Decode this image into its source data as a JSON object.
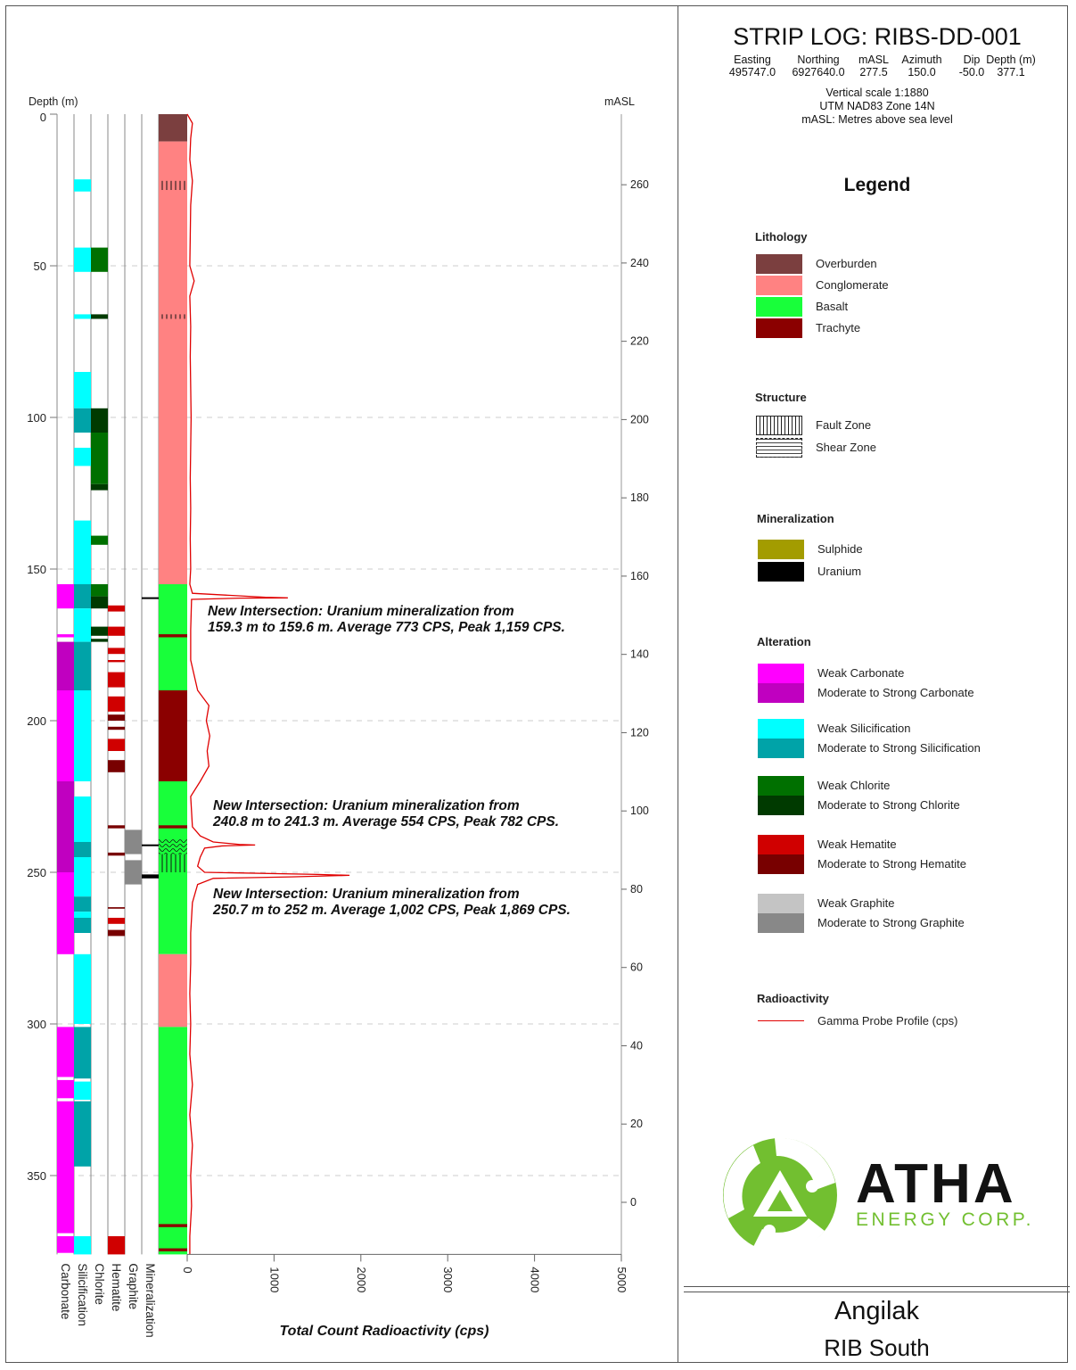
{
  "header": {
    "title": "STRIP LOG: RIBS-DD-001",
    "collar_labels": [
      "Easting",
      "Northing",
      "mASL",
      "Azimuth",
      "Dip",
      "Depth (m)"
    ],
    "collar_values": [
      "495747.0",
      "6927640.0",
      "277.5",
      "150.0",
      "-50.0",
      "377.1"
    ],
    "notes": [
      "Vertical scale 1:1880",
      "UTM NAD83 Zone 14N",
      "mASL: Metres above sea level"
    ]
  },
  "legend": {
    "title": "Legend",
    "sections": [
      {
        "heading": "Lithology",
        "items": [
          {
            "label": "Overburden",
            "color": "#7b3f3f"
          },
          {
            "label": "Conglomerate",
            "color": "#ff8282"
          },
          {
            "label": "Basalt",
            "color": "#18ff3a"
          },
          {
            "label": "Trachyte",
            "color": "#8b0000"
          }
        ]
      },
      {
        "heading": "Structure",
        "items": [
          {
            "label": "Fault Zone",
            "pattern": "fault"
          },
          {
            "label": "Shear Zone",
            "pattern": "shear"
          }
        ]
      },
      {
        "heading": "Mineralization",
        "items": [
          {
            "label": "Sulphide",
            "color": "#a39c00"
          },
          {
            "label": "Uranium",
            "color": "#000000"
          }
        ]
      },
      {
        "heading": "Alteration",
        "items": [
          {
            "label": "Weak Carbonate",
            "color": "#ff00ff"
          },
          {
            "label": "Moderate to Strong Carbonate",
            "color": "#c000c0"
          },
          {
            "label": "Weak Silicification",
            "color": "#00ffff"
          },
          {
            "label": "Moderate to Strong Silicification",
            "color": "#00a3a8"
          },
          {
            "label": "Weak Chlorite",
            "color": "#007000"
          },
          {
            "label": "Moderate to Strong Chlorite",
            "color": "#003a00"
          },
          {
            "label": "Weak Hematite",
            "color": "#d00000"
          },
          {
            "label": "Moderate to Strong Hematite",
            "color": "#780000"
          },
          {
            "label": "Weak Graphite",
            "color": "#c4c4c4"
          },
          {
            "label": "Moderate to Strong Graphite",
            "color": "#888888"
          }
        ]
      },
      {
        "heading": "Radioactivity",
        "items": [
          {
            "label": "Gamma Probe Profile (cps)",
            "line": "#e00000"
          }
        ]
      }
    ]
  },
  "logo": {
    "name": "ATHA",
    "tagline": "ENERGY CORP.",
    "green": "#72bf30"
  },
  "footer": {
    "project": "Angilak",
    "area": "RIB South"
  },
  "chart_data": {
    "type": "strip-log",
    "ylabel_left": "Depth (m)",
    "ylabel_right": "mASL",
    "xlabel": "Total Count Radioactivity (cps)",
    "depth_range": [
      0,
      376
    ],
    "depth_ticks": [
      0,
      50,
      100,
      150,
      200,
      250,
      300,
      350
    ],
    "masl_ticks": [
      0,
      20,
      40,
      60,
      80,
      100,
      120,
      140,
      160,
      180,
      200,
      220,
      240,
      260
    ],
    "cps_range": [
      0,
      5000
    ],
    "cps_ticks": [
      0,
      1000,
      2000,
      3000,
      4000,
      5000
    ],
    "grid": true,
    "column_labels": [
      "Carbonate",
      "Silicification",
      "Chlorite",
      "Hematite",
      "Graphite",
      "Mineralization"
    ],
    "lithology": [
      {
        "from": 0,
        "to": 9,
        "unit": "Overburden"
      },
      {
        "from": 9,
        "to": 155,
        "unit": "Conglomerate"
      },
      {
        "from": 155,
        "to": 190,
        "unit": "Basalt"
      },
      {
        "from": 171.5,
        "to": 172.5,
        "unit": "Trachyte"
      },
      {
        "from": 190,
        "to": 220,
        "unit": "Trachyte"
      },
      {
        "from": 220,
        "to": 277,
        "unit": "Basalt"
      },
      {
        "from": 234.5,
        "to": 235.5,
        "unit": "Trachyte"
      },
      {
        "from": 277,
        "to": 301,
        "unit": "Conglomerate"
      },
      {
        "from": 301,
        "to": 376,
        "unit": "Basalt"
      },
      {
        "from": 366,
        "to": 367,
        "unit": "Trachyte"
      },
      {
        "from": 374,
        "to": 375,
        "unit": "Trachyte"
      }
    ],
    "structure": [
      {
        "from": 22,
        "to": 25,
        "type": "fault"
      },
      {
        "from": 66,
        "to": 67.5,
        "type": "fault"
      },
      {
        "from": 239,
        "to": 244,
        "type": "shear"
      },
      {
        "from": 244,
        "to": 250,
        "type": "fault"
      }
    ],
    "alteration": {
      "Carbonate": [
        [
          155,
          163,
          "weak"
        ],
        [
          171.5,
          172.5,
          "weak"
        ],
        [
          174,
          190,
          "strong"
        ],
        [
          190,
          220,
          "weak"
        ],
        [
          220,
          250,
          "strong"
        ],
        [
          250,
          277,
          "weak"
        ],
        [
          301,
          317.5,
          "weak"
        ],
        [
          318.5,
          324.5,
          "weak"
        ],
        [
          325.5,
          369,
          "weak"
        ],
        [
          370,
          375.5,
          "weak"
        ]
      ],
      "Silicification": [
        [
          21.5,
          25.5,
          "weak"
        ],
        [
          44,
          52,
          "weak"
        ],
        [
          66,
          67.5,
          "weak"
        ],
        [
          85,
          97,
          "weak"
        ],
        [
          97,
          105,
          "strong"
        ],
        [
          110,
          116,
          "weak"
        ],
        [
          134,
          155,
          "weak"
        ],
        [
          155,
          163,
          "strong"
        ],
        [
          163,
          174,
          "weak"
        ],
        [
          174,
          190,
          "strong"
        ],
        [
          190,
          220,
          "weak"
        ],
        [
          225,
          240,
          "weak"
        ],
        [
          240,
          245,
          "strong"
        ],
        [
          245,
          258,
          "weak"
        ],
        [
          258,
          263,
          "strong"
        ],
        [
          263,
          265,
          "weak"
        ],
        [
          265,
          270,
          "strong"
        ],
        [
          277,
          300,
          "weak"
        ],
        [
          301,
          318,
          "strong"
        ],
        [
          319,
          325,
          "weak"
        ],
        [
          325.5,
          347,
          "strong"
        ],
        [
          370,
          376,
          "weak"
        ]
      ],
      "Chlorite": [
        [
          44,
          52,
          "weak"
        ],
        [
          66,
          67.5,
          "strong"
        ],
        [
          97,
          105,
          "strong"
        ],
        [
          105,
          122,
          "weak"
        ],
        [
          122,
          124,
          "strong"
        ],
        [
          139,
          142,
          "weak"
        ],
        [
          155,
          159,
          "weak"
        ],
        [
          159,
          163,
          "strong"
        ],
        [
          169,
          172,
          "strong"
        ],
        [
          173,
          174,
          "strong"
        ]
      ],
      "Hematite": [
        [
          162,
          164,
          "weak"
        ],
        [
          169,
          172,
          "weak"
        ],
        [
          176,
          178,
          "weak"
        ],
        [
          180,
          180.7,
          "weak"
        ],
        [
          184,
          189,
          "weak"
        ],
        [
          192,
          197,
          "weak"
        ],
        [
          198,
          200,
          "strong"
        ],
        [
          202,
          203,
          "strong"
        ],
        [
          206,
          210,
          "weak"
        ],
        [
          213,
          217,
          "strong"
        ],
        [
          234.5,
          235.5,
          "strong"
        ],
        [
          243.5,
          244.5,
          "strong"
        ],
        [
          261.5,
          262,
          "strong"
        ],
        [
          265,
          267,
          "weak"
        ],
        [
          269,
          271,
          "strong"
        ],
        [
          370,
          376,
          "weak"
        ]
      ],
      "Graphite": [
        [
          236,
          244,
          "strong"
        ],
        [
          246,
          254,
          "strong"
        ]
      ]
    },
    "mineralization": [
      {
        "from": 159.3,
        "to": 159.6,
        "type": "Uranium"
      },
      {
        "from": 240.8,
        "to": 241.3,
        "type": "Uranium"
      },
      {
        "from": 250.7,
        "to": 252,
        "type": "Uranium"
      }
    ],
    "gamma": [
      [
        0,
        0
      ],
      [
        3,
        60
      ],
      [
        8,
        40
      ],
      [
        15,
        30
      ],
      [
        22,
        60
      ],
      [
        30,
        40
      ],
      [
        40,
        35
      ],
      [
        50,
        30
      ],
      [
        55,
        80
      ],
      [
        60,
        30
      ],
      [
        70,
        40
      ],
      [
        80,
        35
      ],
      [
        90,
        40
      ],
      [
        100,
        45
      ],
      [
        110,
        40
      ],
      [
        120,
        35
      ],
      [
        130,
        40
      ],
      [
        140,
        35
      ],
      [
        150,
        40
      ],
      [
        155,
        30
      ],
      [
        158,
        60
      ],
      [
        159.3,
        900
      ],
      [
        159.5,
        1159
      ],
      [
        159.6,
        600
      ],
      [
        160,
        50
      ],
      [
        170,
        40
      ],
      [
        180,
        40
      ],
      [
        190,
        120
      ],
      [
        195,
        250
      ],
      [
        200,
        220
      ],
      [
        205,
        260
      ],
      [
        210,
        230
      ],
      [
        215,
        250
      ],
      [
        220,
        150
      ],
      [
        225,
        40
      ],
      [
        235,
        60
      ],
      [
        238,
        150
      ],
      [
        240,
        300
      ],
      [
        240.8,
        600
      ],
      [
        241,
        782
      ],
      [
        241.3,
        400
      ],
      [
        242,
        200
      ],
      [
        245,
        150
      ],
      [
        248,
        120
      ],
      [
        250,
        200
      ],
      [
        250.7,
        1500
      ],
      [
        251,
        1869
      ],
      [
        251.5,
        1200
      ],
      [
        252,
        300
      ],
      [
        254,
        120
      ],
      [
        260,
        60
      ],
      [
        270,
        40
      ],
      [
        280,
        40
      ],
      [
        290,
        30
      ],
      [
        300,
        40
      ],
      [
        310,
        30
      ],
      [
        320,
        60
      ],
      [
        330,
        30
      ],
      [
        340,
        60
      ],
      [
        350,
        40
      ],
      [
        360,
        50
      ],
      [
        370,
        30
      ],
      [
        376,
        30
      ]
    ],
    "annotations": [
      {
        "depth": 159.5,
        "lines": [
          "New Intersection: Uranium mineralization from",
          "159.3 m to 159.6 m. Average 773 CPS, Peak 1,159 CPS."
        ]
      },
      {
        "depth": 241,
        "lines": [
          "New Intersection: Uranium mineralization from",
          "240.8 m to 241.3 m. Average 554 CPS, Peak 782 CPS."
        ]
      },
      {
        "depth": 251,
        "lines": [
          "New Intersection: Uranium mineralization from",
          "250.7 m to 252 m. Average 1,002 CPS, Peak 1,869 CPS."
        ]
      }
    ]
  }
}
